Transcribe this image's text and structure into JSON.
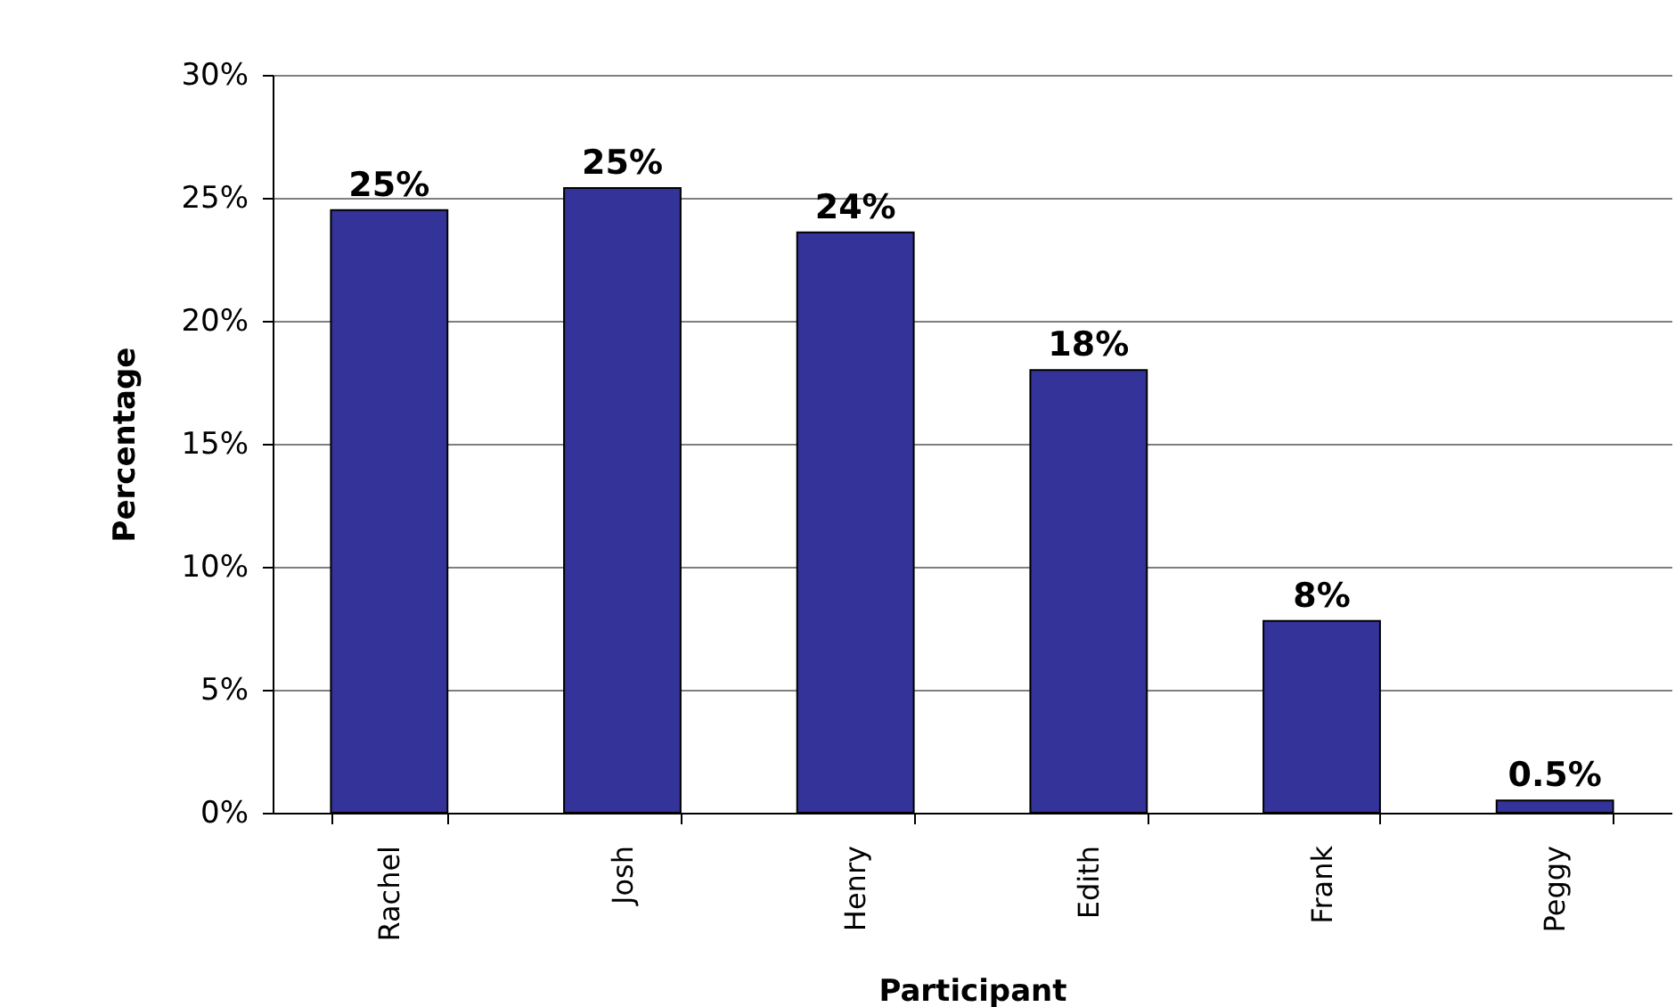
{
  "chart_data": {
    "type": "bar",
    "xlabel": "Participant",
    "ylabel": "Percentage",
    "categories": [
      "Rachel",
      "Josh",
      "Henry",
      "Edith",
      "Frank",
      "Peggy"
    ],
    "values": [
      24.5,
      25.4,
      23.6,
      18.0,
      7.8,
      0.5
    ],
    "value_labels": [
      "25%",
      "25%",
      "24%",
      "18%",
      "8%",
      "0.5%"
    ],
    "color": "#333399",
    "ylim": [
      0,
      30
    ],
    "yticks": [
      {
        "value": 0,
        "label": "0%"
      },
      {
        "value": 5,
        "label": "5%"
      },
      {
        "value": 10,
        "label": "10%"
      },
      {
        "value": 15,
        "label": "15%"
      },
      {
        "value": 20,
        "label": "20%"
      },
      {
        "value": 25,
        "label": "25%"
      },
      {
        "value": 30,
        "label": "30%"
      }
    ],
    "grid": "y"
  }
}
